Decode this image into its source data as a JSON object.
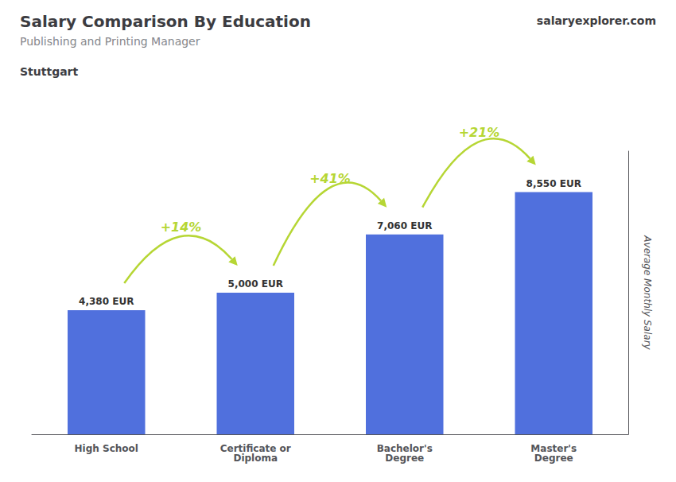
{
  "chart_data": {
    "type": "bar",
    "title": "Salary Comparison By Education",
    "subtitle": "Publishing and Printing Manager",
    "ylabel": "Average Monthly Salary",
    "categories": [
      "High School",
      "Certificate or\nDiploma",
      "Bachelor's\nDegree",
      "Master's\nDegree"
    ],
    "values": [
      4380,
      5000,
      7060,
      8550
    ],
    "value_labels": [
      "4,380 EUR",
      "5,000 EUR",
      "7,060 EUR",
      "8,550 EUR"
    ],
    "data_labels": true,
    "ylim": [
      0,
      10000
    ],
    "tick_labels": "x",
    "grid": false,
    "annotations": [
      {
        "text": "Stuttgart"
      },
      {
        "text": "salaryexplorer.com"
      },
      {
        "text": "+14%",
        "from": "High School",
        "to": "Certificate or\nDiploma"
      },
      {
        "text": "+41%",
        "from": "Certificate or\nDiploma",
        "to": "Bachelor's\nDegree"
      },
      {
        "text": "+21%",
        "from": "Bachelor's\nDegree",
        "to": "Master's\nDegree"
      }
    ]
  }
}
